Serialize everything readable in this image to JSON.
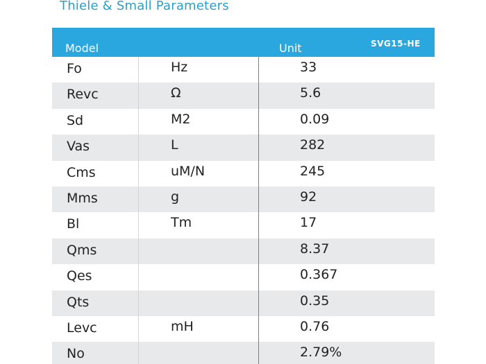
{
  "title": "Thiele & Small Parameters",
  "header": {
    "model_label": "Model",
    "unit_label": "Unit",
    "model_tag": "SVG15-HE"
  },
  "rows": [
    {
      "param": "Fo",
      "unit": "Hz",
      "value": "33"
    },
    {
      "param": "Revc",
      "unit": "Ω",
      "value": "5.6"
    },
    {
      "param": "Sd",
      "unit": "M2",
      "value": "0.09"
    },
    {
      "param": "Vas",
      "unit": "L",
      "value": "282"
    },
    {
      "param": "Cms",
      "unit": "uM/N",
      "value": "245"
    },
    {
      "param": "Mms",
      "unit": "g",
      "value": "92"
    },
    {
      "param": "Bl",
      "unit": "Tm",
      "value": "17"
    },
    {
      "param": "Qms",
      "unit": "",
      "value": "8.37"
    },
    {
      "param": "Qes",
      "unit": "",
      "value": "0.367"
    },
    {
      "param": "Qts",
      "unit": "",
      "value": "0.35"
    },
    {
      "param": "Levc",
      "unit": "mH",
      "value": "0.76"
    },
    {
      "param": "No",
      "unit": "",
      "value": "2.79%"
    }
  ]
}
